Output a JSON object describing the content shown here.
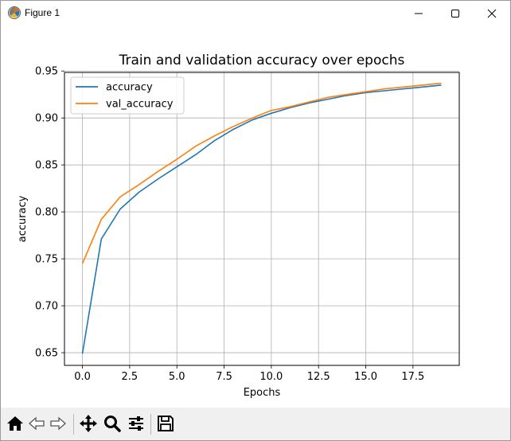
{
  "window": {
    "title": "Figure 1",
    "icon": "matplotlib-figure-icon",
    "controls": [
      "minimize-icon",
      "maximize-icon",
      "close-icon"
    ]
  },
  "toolbar": {
    "tools": [
      "home-icon",
      "back-arrow-icon",
      "forward-arrow-icon",
      "pan-move-icon",
      "zoom-magnifier-icon",
      "configure-subplots-icon",
      "save-floppy-icon"
    ]
  },
  "chart_data": {
    "type": "line",
    "title": "Train and validation accuracy over epochs",
    "xlabel": "Epochs",
    "ylabel": "accuracy",
    "xlim": [
      -0.95,
      19.95
    ],
    "ylim": [
      0.6365,
      0.9485
    ],
    "xticks": [
      0,
      2.5,
      5,
      7.5,
      10,
      12.5,
      15,
      17.5
    ],
    "xtick_labels": [
      "0.0",
      "2.5",
      "5.0",
      "7.5",
      "10.0",
      "12.5",
      "15.0",
      "17.5"
    ],
    "yticks": [
      0.65,
      0.7,
      0.75,
      0.8,
      0.85,
      0.9,
      0.95
    ],
    "ytick_labels": [
      "0.65",
      "0.70",
      "0.75",
      "0.80",
      "0.85",
      "0.90",
      "0.95"
    ],
    "grid": true,
    "legend_position": "top-left",
    "x": [
      0,
      1,
      2,
      3,
      4,
      5,
      6,
      7,
      8,
      9,
      10,
      11,
      12,
      13,
      14,
      15,
      16,
      17,
      18,
      19
    ],
    "series": [
      {
        "name": "accuracy",
        "color": "#1f77b4",
        "values": [
          0.649,
          0.771,
          0.803,
          0.821,
          0.835,
          0.848,
          0.861,
          0.876,
          0.888,
          0.898,
          0.905,
          0.911,
          0.916,
          0.92,
          0.924,
          0.927,
          0.929,
          0.931,
          0.933,
          0.935
        ]
      },
      {
        "name": "val_accuracy",
        "color": "#ff7f0e",
        "values": [
          0.745,
          0.792,
          0.816,
          0.829,
          0.843,
          0.856,
          0.87,
          0.881,
          0.891,
          0.9,
          0.908,
          0.912,
          0.917,
          0.922,
          0.925,
          0.928,
          0.931,
          0.933,
          0.935,
          0.937
        ]
      }
    ]
  }
}
